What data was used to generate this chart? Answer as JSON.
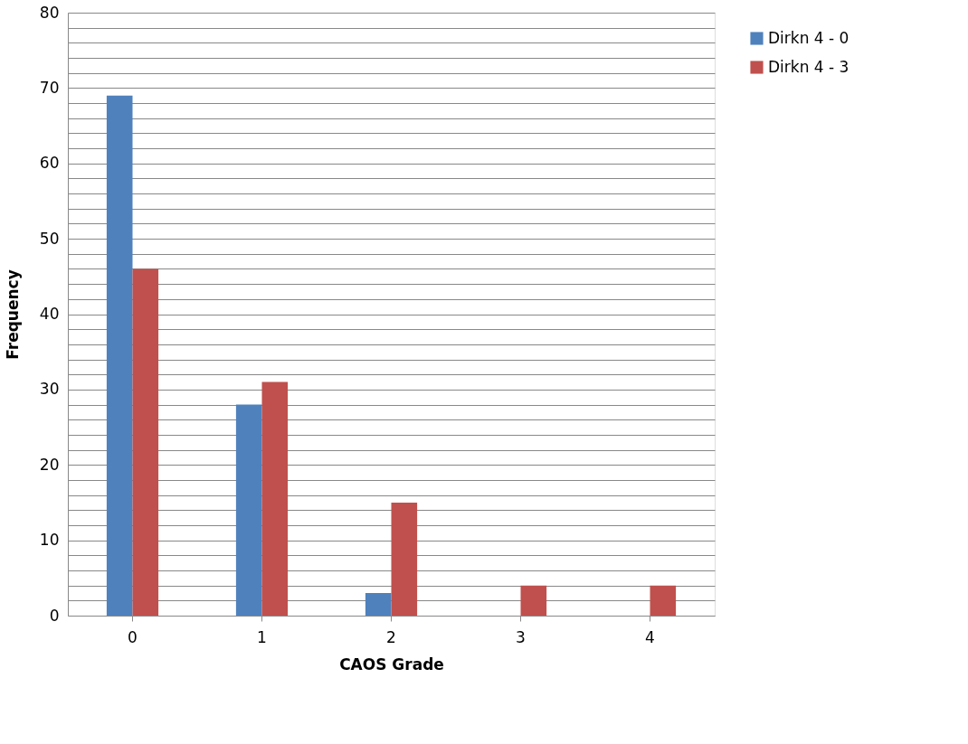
{
  "chart_data": {
    "type": "bar",
    "xlabel": "CAOS Grade",
    "ylabel": "Frequency",
    "categories": [
      "0",
      "1",
      "2",
      "3",
      "4"
    ],
    "series": [
      {
        "name": "Dirkn 4 - 0",
        "color": "#4f81bd",
        "values": [
          69,
          28,
          3,
          0,
          0
        ]
      },
      {
        "name": "Dirkn 4 - 3",
        "color": "#c0504d",
        "values": [
          46,
          31,
          15,
          4,
          4
        ]
      }
    ],
    "ylim": [
      0,
      80
    ],
    "yticks": [
      0,
      {
        "value": 2,
        "label": null
      },
      {
        "value": 4,
        "label": null
      },
      {
        "value": 6,
        "label": null
      },
      {
        "value": 8,
        "label": null
      },
      10,
      {
        "value": 12,
        "label": null
      },
      {
        "value": 14,
        "label": null
      },
      {
        "value": 16,
        "label": null
      },
      {
        "value": 18,
        "label": null
      },
      20,
      {
        "value": 22,
        "label": null
      },
      {
        "value": 24,
        "label": null
      },
      {
        "value": 26,
        "label": null
      },
      {
        "value": 28,
        "label": null
      },
      30,
      {
        "value": 32,
        "label": null
      },
      {
        "value": 34,
        "label": null
      },
      {
        "value": 36,
        "label": null
      },
      {
        "value": 38,
        "label": null
      },
      40,
      {
        "value": 42,
        "label": null
      },
      {
        "value": 44,
        "label": null
      },
      {
        "value": 46,
        "label": null
      },
      {
        "value": 48,
        "label": null
      },
      50,
      {
        "value": 52,
        "label": null
      },
      {
        "value": 54,
        "label": null
      },
      {
        "value": 56,
        "label": null
      },
      {
        "value": 58,
        "label": null
      },
      60,
      {
        "value": 62,
        "label": null
      },
      {
        "value": 64,
        "label": null
      },
      {
        "value": 66,
        "label": null
      },
      {
        "value": 68,
        "label": null
      },
      70,
      {
        "value": 72,
        "label": null
      },
      {
        "value": 74,
        "label": null
      },
      {
        "value": 76,
        "label": null
      },
      {
        "value": 78,
        "label": null
      },
      80
    ],
    "grid": "y",
    "legend": "right"
  }
}
